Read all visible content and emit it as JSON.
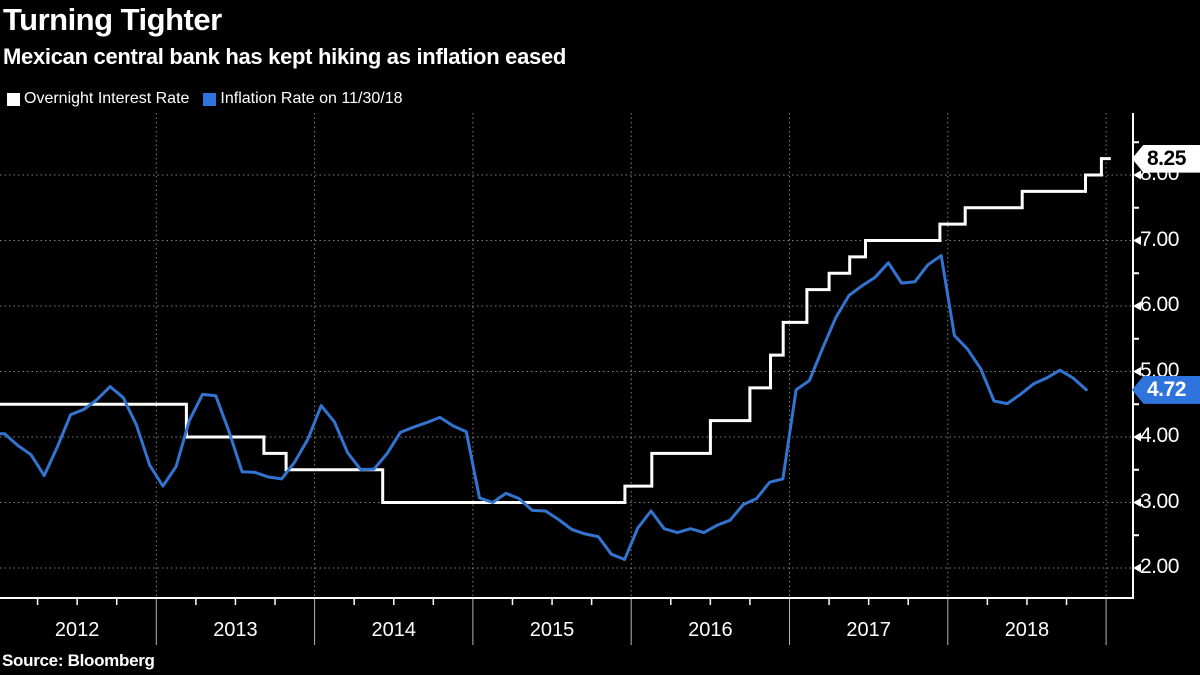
{
  "chart_data": {
    "type": "line",
    "title": "Turning Tighter",
    "subtitle": "Mexican central bank has kept hiking as inflation eased",
    "source": "Source: Bloomberg",
    "background": "#000000",
    "text_color": "#ffffff",
    "grid": "dotted",
    "legend": {
      "position": "top-left",
      "items": [
        {
          "label": "Overnight Interest Rate",
          "color": "#ffffff"
        },
        {
          "label": "Inflation Rate on 11/30/18",
          "color": "#2e74dc"
        }
      ]
    },
    "x_axis": {
      "labels": [
        {
          "text": "2012",
          "center_t": 2012.5
        },
        {
          "text": "2013",
          "center_t": 2013.5
        },
        {
          "text": "2014",
          "center_t": 2014.5
        },
        {
          "text": "2015",
          "center_t": 2015.5
        },
        {
          "text": "2016",
          "center_t": 2016.5
        },
        {
          "text": "2017",
          "center_t": 2017.5
        },
        {
          "text": "2018",
          "center_t": 2018.5
        }
      ],
      "year_boundaries": [
        2013,
        2014,
        2015,
        2016,
        2017,
        2018,
        2019
      ],
      "minor_ticks": "quarterly",
      "range_decimal_years": [
        2012.0,
        2019.17
      ]
    },
    "y_axis": {
      "side": "right",
      "ticks": [
        {
          "text": "2.00",
          "value": 2
        },
        {
          "text": "3.00",
          "value": 3
        },
        {
          "text": "4.00",
          "value": 4
        },
        {
          "text": "5.00",
          "value": 5
        },
        {
          "text": "6.00",
          "value": 6
        },
        {
          "text": "7.00",
          "value": 7
        },
        {
          "text": "8.00",
          "value": 8
        }
      ],
      "minor_tick_values": [
        2.5,
        3.5,
        4.5,
        5.5,
        6.5,
        7.5,
        8.5
      ],
      "range": [
        1.55,
        8.95
      ],
      "unit": "percent"
    },
    "series": [
      {
        "name": "Overnight Interest Rate",
        "color": "#ffffff",
        "style": "step",
        "steps": [
          {
            "t": 2012.0,
            "rate": 4.5
          },
          {
            "t": 2013.19,
            "rate": 4.0
          },
          {
            "t": 2013.68,
            "rate": 3.75
          },
          {
            "t": 2013.82,
            "rate": 3.5
          },
          {
            "t": 2014.43,
            "rate": 3.0
          },
          {
            "t": 2015.96,
            "rate": 3.25
          },
          {
            "t": 2016.13,
            "rate": 3.75
          },
          {
            "t": 2016.5,
            "rate": 4.25
          },
          {
            "t": 2016.75,
            "rate": 4.75
          },
          {
            "t": 2016.88,
            "rate": 5.25
          },
          {
            "t": 2016.96,
            "rate": 5.75
          },
          {
            "t": 2017.11,
            "rate": 6.25
          },
          {
            "t": 2017.25,
            "rate": 6.5
          },
          {
            "t": 2017.38,
            "rate": 6.75
          },
          {
            "t": 2017.48,
            "rate": 7.0
          },
          {
            "t": 2017.95,
            "rate": 7.25
          },
          {
            "t": 2018.11,
            "rate": 7.5
          },
          {
            "t": 2018.47,
            "rate": 7.75
          },
          {
            "t": 2018.87,
            "rate": 8.0
          },
          {
            "t": 2018.97,
            "rate": 8.25
          }
        ],
        "end_t": 2019.03,
        "end_label": {
          "text": "8.25",
          "value": 8.25,
          "bg": "#ffffff",
          "fg": "#000000"
        }
      },
      {
        "name": "Inflation Rate on 11/30/18",
        "color": "#3274d0",
        "style": "line",
        "start_month": "2012-01",
        "end_month": "2018-11",
        "monthly_values": [
          4.05,
          3.87,
          3.73,
          3.41,
          3.85,
          4.34,
          4.42,
          4.57,
          4.77,
          4.6,
          4.18,
          3.57,
          3.25,
          3.55,
          4.25,
          4.65,
          4.63,
          4.09,
          3.47,
          3.46,
          3.39,
          3.36,
          3.62,
          3.97,
          4.48,
          4.23,
          3.76,
          3.5,
          3.51,
          3.75,
          4.07,
          4.15,
          4.22,
          4.3,
          4.17,
          4.08,
          3.07,
          3.0,
          3.14,
          3.06,
          2.88,
          2.87,
          2.74,
          2.59,
          2.52,
          2.48,
          2.21,
          2.13,
          2.61,
          2.87,
          2.6,
          2.54,
          2.6,
          2.54,
          2.65,
          2.73,
          2.97,
          3.06,
          3.31,
          3.36,
          4.72,
          4.86,
          5.35,
          5.82,
          6.16,
          6.31,
          6.44,
          6.66,
          6.35,
          6.37,
          6.63,
          6.77,
          5.55,
          5.34,
          5.04,
          4.55,
          4.51,
          4.65,
          4.81,
          4.9,
          5.02,
          4.9,
          4.72
        ],
        "end_label": {
          "text": "4.72",
          "value": 4.72,
          "bg": "#2e74dc",
          "fg": "#ffffff"
        }
      }
    ]
  }
}
